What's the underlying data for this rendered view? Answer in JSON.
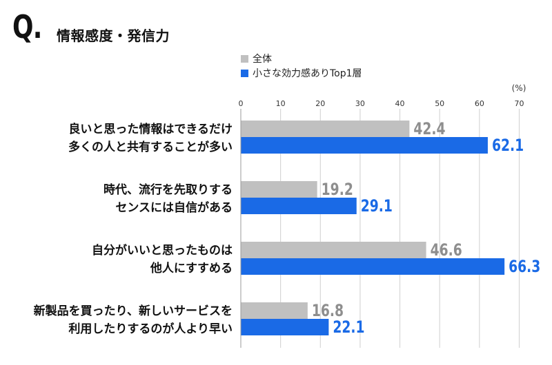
{
  "header": {
    "q_mark": "Q.",
    "title": "情報感度・発信力"
  },
  "colors": {
    "all": "#c0c0c0",
    "top1": "#1a6ae6",
    "all_label": "#8e8e8e",
    "top1_label": "#1a6ae6",
    "grid": "#cfcfcf"
  },
  "chart_data": {
    "type": "bar",
    "orientation": "horizontal",
    "title": "情報感度・発信力",
    "unit": "(%)",
    "xlim": [
      0,
      70
    ],
    "ticks": [
      0,
      10,
      20,
      30,
      40,
      50,
      60,
      70
    ],
    "categories": [
      [
        "良いと思った情報はできるだけ",
        "多くの人と共有することが多い"
      ],
      [
        "時代、流行を先取りする",
        "センスには自信がある"
      ],
      [
        "自分がいいと思ったものは",
        "他人にすすめる"
      ],
      [
        "新製品を買ったり、新しいサービスを",
        "利用したりするのが人より早い"
      ]
    ],
    "series": [
      {
        "name": "全体",
        "values": [
          42.4,
          19.2,
          46.6,
          16.8
        ]
      },
      {
        "name": "小さな効力感ありTop1層",
        "values": [
          62.1,
          29.1,
          66.3,
          22.1
        ]
      }
    ]
  }
}
